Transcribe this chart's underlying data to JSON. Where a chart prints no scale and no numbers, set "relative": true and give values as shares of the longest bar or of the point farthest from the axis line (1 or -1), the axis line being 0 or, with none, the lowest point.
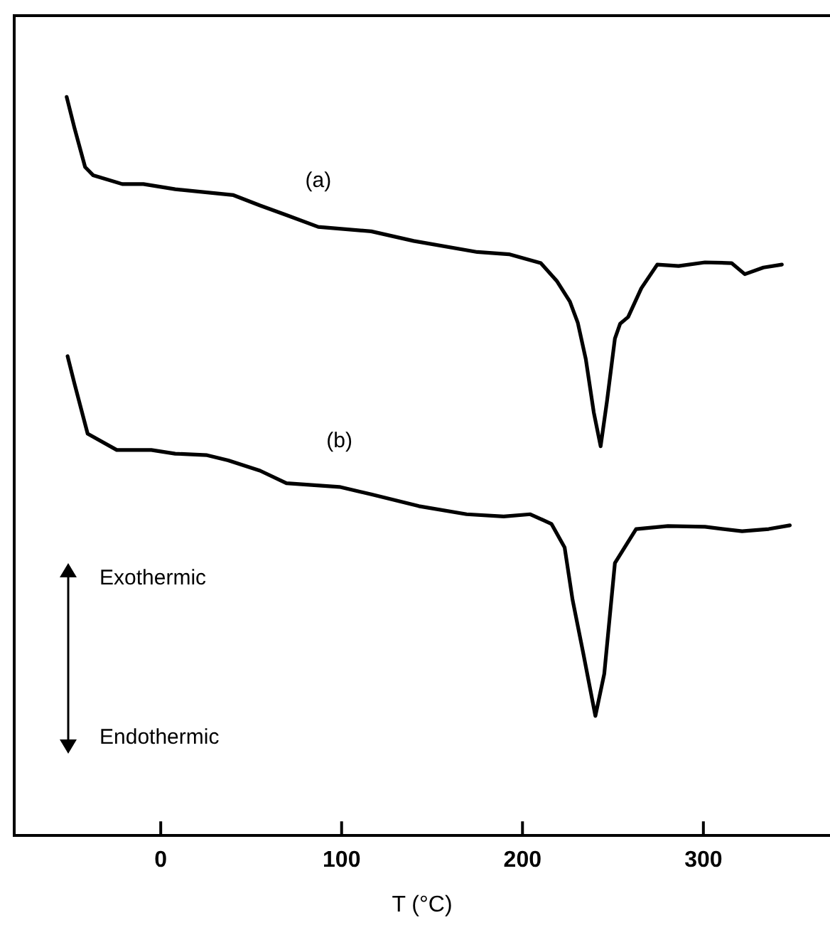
{
  "chart_data": {
    "type": "line",
    "relative": true,
    "xlabel": "T (°C)",
    "xlim": [
      -81,
      370
    ],
    "xticks": [
      0,
      100,
      200,
      300
    ],
    "grid": false,
    "legend": false,
    "marker": "none",
    "line_style": "solid",
    "annotations": [
      "Exothermic",
      "Endothermic"
    ],
    "series": [
      {
        "name": "(a)",
        "color": "#000000",
        "x": [
          -52.0,
          -47.7,
          -41.8,
          -37.4,
          -21.3,
          -9.6,
          8.0,
          40.2,
          54.9,
          69.5,
          87.1,
          116.4,
          139.8,
          175.0,
          192.5,
          210.1,
          218.9,
          226.2,
          230.6,
          235.0,
          239.4,
          243.2,
          246.7,
          251.1,
          254.0,
          258.4,
          265.7,
          274.5,
          286.3,
          300.9,
          315.6,
          322.9,
          333.2,
          343.4
        ],
        "values": [
          1.0,
          0.958,
          0.905,
          0.894,
          0.882,
          0.882,
          0.875,
          0.867,
          0.853,
          0.84,
          0.824,
          0.818,
          0.805,
          0.79,
          0.787,
          0.775,
          0.751,
          0.723,
          0.694,
          0.645,
          0.573,
          0.527,
          0.588,
          0.673,
          0.693,
          0.702,
          0.741,
          0.773,
          0.771,
          0.776,
          0.775,
          0.76,
          0.769,
          0.773
        ]
      },
      {
        "name": "(b)",
        "color": "#000000",
        "x": [
          -51.5,
          -47.7,
          -40.4,
          -24.3,
          -5.2,
          8.0,
          25.6,
          37.3,
          54.9,
          69.5,
          98.8,
          116.4,
          142.7,
          169.1,
          189.6,
          204.3,
          216.0,
          223.3,
          227.7,
          233.5,
          240.3,
          245.2,
          251.1,
          262.8,
          280.4,
          300.9,
          321.4,
          336.1,
          347.8
        ],
        "values": [
          0.649,
          0.612,
          0.544,
          0.522,
          0.522,
          0.517,
          0.515,
          0.508,
          0.494,
          0.477,
          0.472,
          0.462,
          0.446,
          0.435,
          0.432,
          0.435,
          0.422,
          0.39,
          0.319,
          0.248,
          0.162,
          0.219,
          0.369,
          0.415,
          0.419,
          0.418,
          0.412,
          0.415,
          0.42
        ]
      }
    ]
  }
}
